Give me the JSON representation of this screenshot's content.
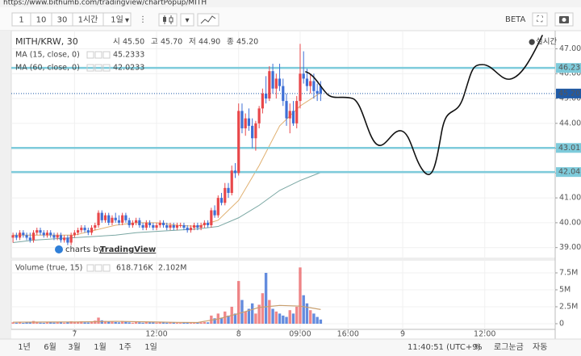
{
  "browser": {
    "url": "https://www.bithumb.com/tradingview/chartPopup/MITH"
  },
  "toolbar": {
    "intervals": [
      "1",
      "10",
      "30",
      "1시간",
      "1일"
    ],
    "badge": "BETA"
  },
  "chart_data": {
    "type": "candlestick",
    "title": "MITH/KRW, 30",
    "ohlc_legend": {
      "labels": [
        "시",
        "고",
        "저",
        "종"
      ],
      "values": [
        45.5,
        45.7,
        44.9,
        45.2
      ],
      "value_labels": [
        "45.50",
        "45.70",
        "44.90",
        "45.20"
      ]
    },
    "status": "실시간",
    "watermark": {
      "prefix": "charts by",
      "brand": "TradingView"
    },
    "up_color": "#e8474a",
    "down_color": "#3d6fd6",
    "candles": {
      "x": [
        -18,
        -17,
        -16,
        -15,
        -14,
        -13,
        -12,
        -11,
        -10,
        -9,
        -8,
        -7,
        -6,
        -5,
        -4,
        -3,
        -2,
        -1,
        0,
        1,
        2,
        3,
        4,
        5,
        6,
        7,
        8,
        9,
        10,
        11,
        12,
        13,
        14,
        15,
        16,
        17,
        18,
        19,
        20,
        21,
        22,
        23,
        24,
        25,
        26,
        27,
        28,
        29,
        30,
        31,
        32,
        33,
        34,
        35,
        36,
        37,
        38,
        39,
        40,
        41,
        42,
        43,
        44,
        45,
        46,
        47,
        48,
        49,
        50,
        51,
        52,
        53,
        54,
        55,
        56,
        57,
        58,
        59,
        60,
        61,
        62,
        63,
        64,
        65,
        66,
        67,
        68,
        69,
        70,
        71,
        72
      ],
      "open": [
        39.4,
        39.5,
        39.4,
        39.6,
        39.5,
        39.4,
        39.3,
        39.6,
        39.7,
        39.6,
        39.5,
        39.6,
        39.5,
        39.4,
        39.5,
        39.3,
        39.4,
        39.2,
        39.5,
        39.6,
        39.7,
        39.8,
        39.7,
        39.6,
        39.8,
        39.9,
        40.4,
        40.1,
        40.3,
        40.0,
        40.2,
        40.1,
        40.0,
        40.3,
        40.1,
        39.9,
        40.0,
        40.1,
        39.9,
        39.8,
        40.0,
        39.9,
        39.8,
        39.9,
        40.0,
        39.9,
        39.8,
        39.9,
        39.8,
        39.9,
        39.9,
        39.8,
        39.7,
        39.8,
        39.9,
        39.8,
        39.9,
        40.0,
        39.9,
        40.5,
        40.3,
        41.0,
        40.8,
        41.4,
        41.2,
        42.1,
        42.0,
        44.5,
        43.8,
        44.2,
        43.9,
        43.4,
        44.0,
        44.6,
        45.2,
        45.0,
        46.1,
        45.4,
        45.8,
        45.5,
        44.9,
        44.2,
        44.5,
        44.0,
        44.9,
        46.0,
        45.8,
        45.5,
        45.7,
        45.3,
        45.5
      ],
      "high": [
        39.6,
        39.6,
        39.7,
        39.7,
        39.6,
        39.6,
        39.7,
        39.8,
        39.8,
        39.7,
        39.7,
        39.7,
        39.6,
        39.6,
        39.6,
        39.5,
        39.5,
        39.6,
        39.7,
        39.8,
        39.9,
        39.9,
        39.8,
        39.9,
        40.0,
        40.5,
        40.5,
        40.4,
        40.4,
        40.3,
        40.4,
        40.3,
        40.4,
        40.4,
        40.2,
        40.1,
        40.2,
        40.2,
        40.0,
        40.1,
        40.1,
        40.0,
        40.0,
        40.1,
        40.1,
        40.0,
        40.0,
        40.0,
        40.0,
        40.0,
        40.0,
        39.9,
        39.9,
        40.0,
        40.0,
        40.0,
        40.1,
        40.1,
        40.6,
        40.7,
        41.1,
        41.2,
        41.6,
        41.6,
        42.3,
        42.4,
        44.8,
        44.8,
        44.4,
        44.6,
        44.2,
        44.1,
        44.7,
        45.4,
        45.9,
        46.3,
        46.4,
        46.0,
        46.4,
        45.8,
        45.2,
        44.8,
        44.9,
        45.1,
        47.2,
        46.9,
        46.2,
        46.0,
        46.0,
        45.6,
        45.7
      ],
      "low": [
        39.2,
        39.3,
        39.3,
        39.4,
        39.3,
        39.2,
        39.2,
        39.5,
        39.5,
        39.4,
        39.4,
        39.4,
        39.3,
        39.3,
        39.2,
        39.2,
        39.1,
        39.1,
        39.4,
        39.5,
        39.6,
        39.6,
        39.5,
        39.5,
        39.7,
        39.8,
        40.0,
        40.0,
        39.9,
        39.9,
        40.0,
        39.9,
        39.9,
        40.0,
        39.8,
        39.8,
        39.9,
        39.8,
        39.7,
        39.7,
        39.8,
        39.7,
        39.7,
        39.8,
        39.8,
        39.7,
        39.7,
        39.7,
        39.7,
        39.8,
        39.7,
        39.6,
        39.6,
        39.7,
        39.7,
        39.7,
        39.8,
        39.8,
        39.8,
        40.2,
        40.2,
        40.7,
        40.7,
        41.0,
        41.1,
        41.8,
        41.9,
        43.6,
        43.5,
        43.7,
        43.0,
        42.9,
        43.8,
        44.4,
        44.8,
        44.9,
        45.2,
        45.0,
        45.3,
        44.7,
        43.9,
        43.6,
        43.9,
        43.8,
        44.6,
        45.6,
        45.3,
        45.2,
        45.0,
        44.9,
        44.9
      ],
      "close": [
        39.5,
        39.4,
        39.6,
        39.5,
        39.4,
        39.3,
        39.6,
        39.7,
        39.6,
        39.5,
        39.6,
        39.5,
        39.4,
        39.5,
        39.3,
        39.4,
        39.2,
        39.5,
        39.6,
        39.7,
        39.8,
        39.7,
        39.6,
        39.8,
        39.9,
        40.4,
        40.1,
        40.3,
        40.0,
        40.2,
        40.1,
        40.0,
        40.3,
        40.1,
        39.9,
        40.0,
        40.1,
        39.9,
        39.8,
        40.0,
        39.9,
        39.8,
        39.9,
        40.0,
        39.9,
        39.8,
        39.9,
        39.8,
        39.9,
        39.9,
        39.8,
        39.7,
        39.8,
        39.9,
        39.8,
        39.9,
        40.0,
        39.9,
        40.5,
        40.3,
        41.0,
        40.8,
        41.4,
        41.2,
        42.1,
        42.0,
        44.5,
        43.8,
        44.2,
        43.9,
        43.4,
        44.0,
        44.6,
        45.2,
        45.0,
        46.1,
        45.4,
        45.8,
        45.5,
        44.9,
        44.2,
        44.5,
        44.0,
        44.9,
        46.0,
        45.8,
        45.5,
        45.7,
        45.3,
        45.2,
        45.2
      ]
    },
    "ma_series": [
      {
        "name": "MA (15, close, 0)",
        "color": "#e0b070",
        "value": 45.2333,
        "value_label": "45.2333",
        "x": [
          -18,
          -12,
          -6,
          0,
          6,
          12,
          18,
          24,
          30,
          36,
          42,
          48,
          54,
          60,
          66,
          72
        ],
        "values": [
          39.5,
          39.5,
          39.5,
          39.5,
          39.7,
          39.9,
          40.0,
          40.0,
          39.9,
          39.85,
          40.1,
          40.9,
          42.3,
          43.9,
          44.7,
          45.2333
        ]
      },
      {
        "name": "MA (60, close, 0)",
        "color": "#7aa7a3",
        "value": 42.0233,
        "value_label": "42.0233",
        "x": [
          -18,
          -12,
          -6,
          0,
          6,
          12,
          18,
          24,
          30,
          36,
          42,
          48,
          54,
          60,
          66,
          72
        ],
        "values": [
          39.2,
          39.3,
          39.35,
          39.4,
          39.45,
          39.5,
          39.6,
          39.65,
          39.7,
          39.75,
          39.85,
          40.2,
          40.7,
          41.3,
          41.7,
          42.0233
        ]
      }
    ],
    "hlines": [
      {
        "value": 46.23,
        "label": "46.23",
        "color": "#7ecbdb",
        "style": "solid"
      },
      {
        "value": 45.2,
        "label": "45.20",
        "color": "#1f5aa6",
        "style": "dotted"
      },
      {
        "value": 43.01,
        "label": "43.01",
        "color": "#7ecbdb",
        "style": "solid"
      },
      {
        "value": 42.04,
        "label": "42.04",
        "color": "#7ecbdb",
        "style": "solid"
      }
    ],
    "xlim": [
      -18.5,
      140.6
    ],
    "xticks": [
      {
        "value": 0,
        "label": "7"
      },
      {
        "value": 24,
        "label": "12:00"
      },
      {
        "value": 48,
        "label": "8"
      },
      {
        "value": 66,
        "label": "09:00"
      },
      {
        "value": 80,
        "label": "16:00"
      },
      {
        "value": 96,
        "label": "9"
      },
      {
        "value": 120,
        "label": "12:00"
      }
    ],
    "ylim": [
      38.6,
      47.6
    ],
    "yticks": [
      {
        "value": 39,
        "label": "39.00"
      },
      {
        "value": 40,
        "label": "40.00"
      },
      {
        "value": 41,
        "label": "41.00"
      },
      {
        "value": 42,
        "label": "42.00"
      },
      {
        "value": 43,
        "label": "43.00"
      },
      {
        "value": 44,
        "label": "44.00"
      },
      {
        "value": 45,
        "label": "45.00"
      },
      {
        "value": 46,
        "label": "46.00"
      },
      {
        "value": 47,
        "label": "47.00"
      }
    ],
    "grid": true,
    "volume": {
      "name": "Volume (true, 15)",
      "values": [
        200000,
        150000,
        300000,
        120000,
        180000,
        250000,
        400000,
        220000,
        150000,
        130000,
        200000,
        180000,
        160000,
        220000,
        300000,
        150000,
        250000,
        350000,
        300000,
        250000,
        350000,
        200000,
        180000,
        300000,
        450000,
        900000,
        500000,
        400000,
        350000,
        300000,
        250000,
        200000,
        400000,
        300000,
        200000,
        150000,
        250000,
        200000,
        150000,
        250000,
        200000,
        180000,
        150000,
        200000,
        180000,
        150000,
        200000,
        170000,
        150000,
        130000,
        180000,
        160000,
        140000,
        200000,
        150000,
        180000,
        250000,
        200000,
        1200000,
        800000,
        1500000,
        900000,
        1800000,
        1200000,
        2500000,
        1500000,
        6300000,
        3500000,
        1800000,
        2200000,
        3000000,
        1500000,
        2800000,
        4500000,
        7500000,
        3500000,
        2200000,
        1800000,
        1500000,
        1200000,
        1000000,
        2000000,
        1500000,
        2500000,
        8300000,
        4200000,
        3000000,
        2000000,
        1500000,
        1000000,
        618716
      ],
      "value_label": "618.716K",
      "ma_color": "#c9a070",
      "ma_x": [
        -18,
        -12,
        -6,
        0,
        6,
        12,
        18,
        24,
        30,
        36,
        42,
        48,
        54,
        60,
        66,
        72
      ],
      "ma_values": [
        230000,
        240000,
        250000,
        260000,
        300000,
        350000,
        300000,
        250000,
        200000,
        180000,
        700000,
        1500000,
        2400000,
        2700000,
        2600000,
        2102000
      ],
      "ma_value": 2102000,
      "ma_value_label": "2.102M",
      "ylim": [
        0,
        9050000
      ],
      "yticks": [
        0,
        {
          "value": 2500000,
          "label": "2.5M"
        },
        {
          "value": 5000000,
          "label": "5M"
        },
        {
          "value": 7500000,
          "label": "7.5M"
        }
      ]
    }
  },
  "footer": {
    "ranges": [
      "1년",
      "6월",
      "3월",
      "1월",
      "1주",
      "1일"
    ],
    "clock": "11:40:51 (UTC+9)",
    "percent": "%",
    "log": "로그눈금",
    "auto": "자동"
  }
}
